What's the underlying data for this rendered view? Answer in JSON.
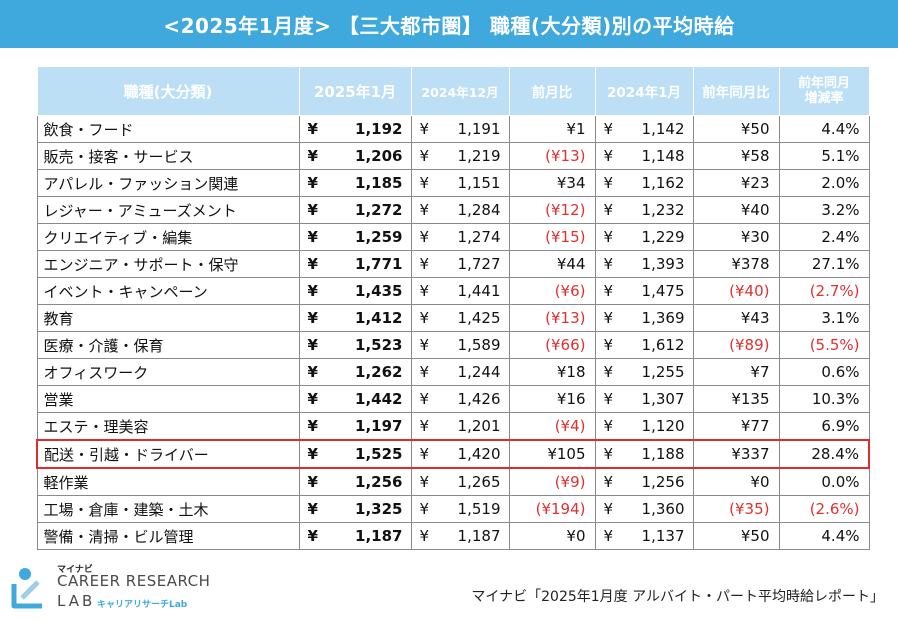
{
  "title": "<2025年1月度> 【三大都市圏】 職種(大分類)別の平均時給",
  "headers": {
    "job": "職種(大分類)",
    "current": "2025年1月",
    "prev_month": "2024年12月",
    "mom": "前月比",
    "prev_year": "2024年1月",
    "yoy": "前年同月比",
    "yoy_rate_line1": "前年同月",
    "yoy_rate_line2": "増減率"
  },
  "yen": "¥",
  "rows": [
    {
      "job": "飲食・フード",
      "current": "1,192",
      "prev_month": "1,191",
      "mom": "¥1",
      "mom_neg": false,
      "prev_year": "1,142",
      "yoy": "¥50",
      "yoy_neg": false,
      "rate": "4.4%",
      "rate_neg": false
    },
    {
      "job": "販売・接客・サービス",
      "current": "1,206",
      "prev_month": "1,219",
      "mom": "(¥13)",
      "mom_neg": true,
      "prev_year": "1,148",
      "yoy": "¥58",
      "yoy_neg": false,
      "rate": "5.1%",
      "rate_neg": false
    },
    {
      "job": "アパレル・ファッション関連",
      "current": "1,185",
      "prev_month": "1,151",
      "mom": "¥34",
      "mom_neg": false,
      "prev_year": "1,162",
      "yoy": "¥23",
      "yoy_neg": false,
      "rate": "2.0%",
      "rate_neg": false
    },
    {
      "job": "レジャー・アミューズメント",
      "current": "1,272",
      "prev_month": "1,284",
      "mom": "(¥12)",
      "mom_neg": true,
      "prev_year": "1,232",
      "yoy": "¥40",
      "yoy_neg": false,
      "rate": "3.2%",
      "rate_neg": false
    },
    {
      "job": "クリエイティブ・編集",
      "current": "1,259",
      "prev_month": "1,274",
      "mom": "(¥15)",
      "mom_neg": true,
      "prev_year": "1,229",
      "yoy": "¥30",
      "yoy_neg": false,
      "rate": "2.4%",
      "rate_neg": false
    },
    {
      "job": "エンジニア・サポート・保守",
      "current": "1,771",
      "prev_month": "1,727",
      "mom": "¥44",
      "mom_neg": false,
      "prev_year": "1,393",
      "yoy": "¥378",
      "yoy_neg": false,
      "rate": "27.1%",
      "rate_neg": false
    },
    {
      "job": "イベント・キャンペーン",
      "current": "1,435",
      "prev_month": "1,441",
      "mom": "(¥6)",
      "mom_neg": true,
      "prev_year": "1,475",
      "yoy": "(¥40)",
      "yoy_neg": true,
      "rate": "(2.7%)",
      "rate_neg": true
    },
    {
      "job": "教育",
      "current": "1,412",
      "prev_month": "1,425",
      "mom": "(¥13)",
      "mom_neg": true,
      "prev_year": "1,369",
      "yoy": "¥43",
      "yoy_neg": false,
      "rate": "3.1%",
      "rate_neg": false
    },
    {
      "job": "医療・介護・保育",
      "current": "1,523",
      "prev_month": "1,589",
      "mom": "(¥66)",
      "mom_neg": true,
      "prev_year": "1,612",
      "yoy": "(¥89)",
      "yoy_neg": true,
      "rate": "(5.5%)",
      "rate_neg": true
    },
    {
      "job": "オフィスワーク",
      "current": "1,262",
      "prev_month": "1,244",
      "mom": "¥18",
      "mom_neg": false,
      "prev_year": "1,255",
      "yoy": "¥7",
      "yoy_neg": false,
      "rate": "0.6%",
      "rate_neg": false
    },
    {
      "job": "営業",
      "current": "1,442",
      "prev_month": "1,426",
      "mom": "¥16",
      "mom_neg": false,
      "prev_year": "1,307",
      "yoy": "¥135",
      "yoy_neg": false,
      "rate": "10.3%",
      "rate_neg": false
    },
    {
      "job": "エステ・理美容",
      "current": "1,197",
      "prev_month": "1,201",
      "mom": "(¥4)",
      "mom_neg": true,
      "prev_year": "1,120",
      "yoy": "¥77",
      "yoy_neg": false,
      "rate": "6.9%",
      "rate_neg": false
    },
    {
      "job": "配送・引越・ドライバー",
      "current": "1,525",
      "prev_month": "1,420",
      "mom": "¥105",
      "mom_neg": false,
      "prev_year": "1,188",
      "yoy": "¥337",
      "yoy_neg": false,
      "rate": "28.4%",
      "rate_neg": false,
      "highlight": true
    },
    {
      "job": "軽作業",
      "current": "1,256",
      "prev_month": "1,265",
      "mom": "(¥9)",
      "mom_neg": true,
      "prev_year": "1,256",
      "yoy": "¥0",
      "yoy_neg": false,
      "rate": "0.0%",
      "rate_neg": false
    },
    {
      "job": "工場・倉庫・建築・土木",
      "current": "1,325",
      "prev_month": "1,519",
      "mom": "(¥194)",
      "mom_neg": true,
      "prev_year": "1,360",
      "yoy": "(¥35)",
      "yoy_neg": true,
      "rate": "(2.6%)",
      "rate_neg": true
    },
    {
      "job": "警備・清掃・ビル管理",
      "current": "1,187",
      "prev_month": "1,187",
      "mom": "¥0",
      "mom_neg": false,
      "prev_year": "1,137",
      "yoy": "¥50",
      "yoy_neg": false,
      "rate": "4.4%",
      "rate_neg": false
    }
  ],
  "logo": {
    "small": "マイナビ",
    "line1": "CAREER RESEARCH",
    "line2": "LAB",
    "jp": "キャリアリサーチLab"
  },
  "source": "マイナビ「2025年1月度 アルバイト・パート平均時給レポート」",
  "colors": {
    "banner": "#3fa8dc",
    "header_bg": "#bcdff5",
    "negative": "#e03030",
    "highlight_border": "#e02b2b"
  }
}
